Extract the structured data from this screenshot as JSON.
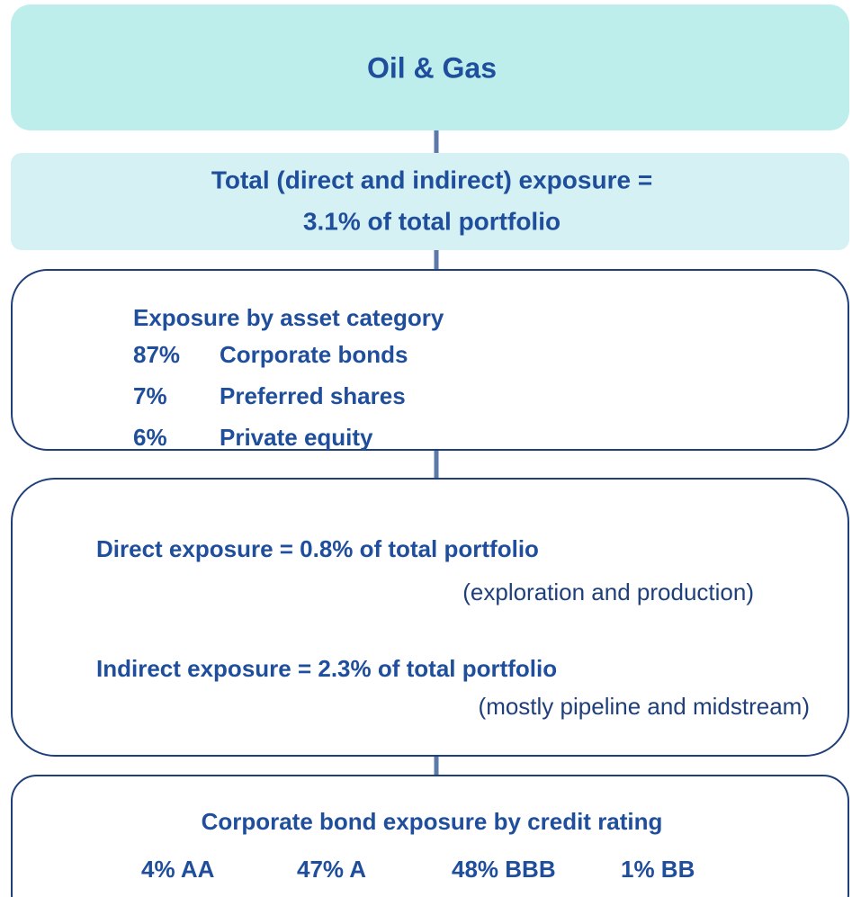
{
  "title": "Oil & Gas",
  "total": {
    "lines": [
      "Total (direct and indirect) exposure =",
      "3.1% of total portfolio"
    ]
  },
  "asset_category": {
    "heading": "Exposure by asset category",
    "items": [
      {
        "percent": "87%",
        "label": "Corporate bonds"
      },
      {
        "percent": "7%",
        "label": "Preferred shares"
      },
      {
        "percent": "6%",
        "label": "Private equity"
      }
    ]
  },
  "exposure": {
    "direct": {
      "text": "Direct exposure = 0.8% of total portfolio",
      "note": "(exploration and production)"
    },
    "indirect": {
      "text": "Indirect exposure = 2.3% of total portfolio",
      "note": "(mostly pipeline and midstream)"
    }
  },
  "credit_rating": {
    "heading": "Corporate bond exposure by credit rating",
    "items": [
      "4% AA",
      "47% A",
      "48% BBB",
      "1% BB"
    ]
  }
}
